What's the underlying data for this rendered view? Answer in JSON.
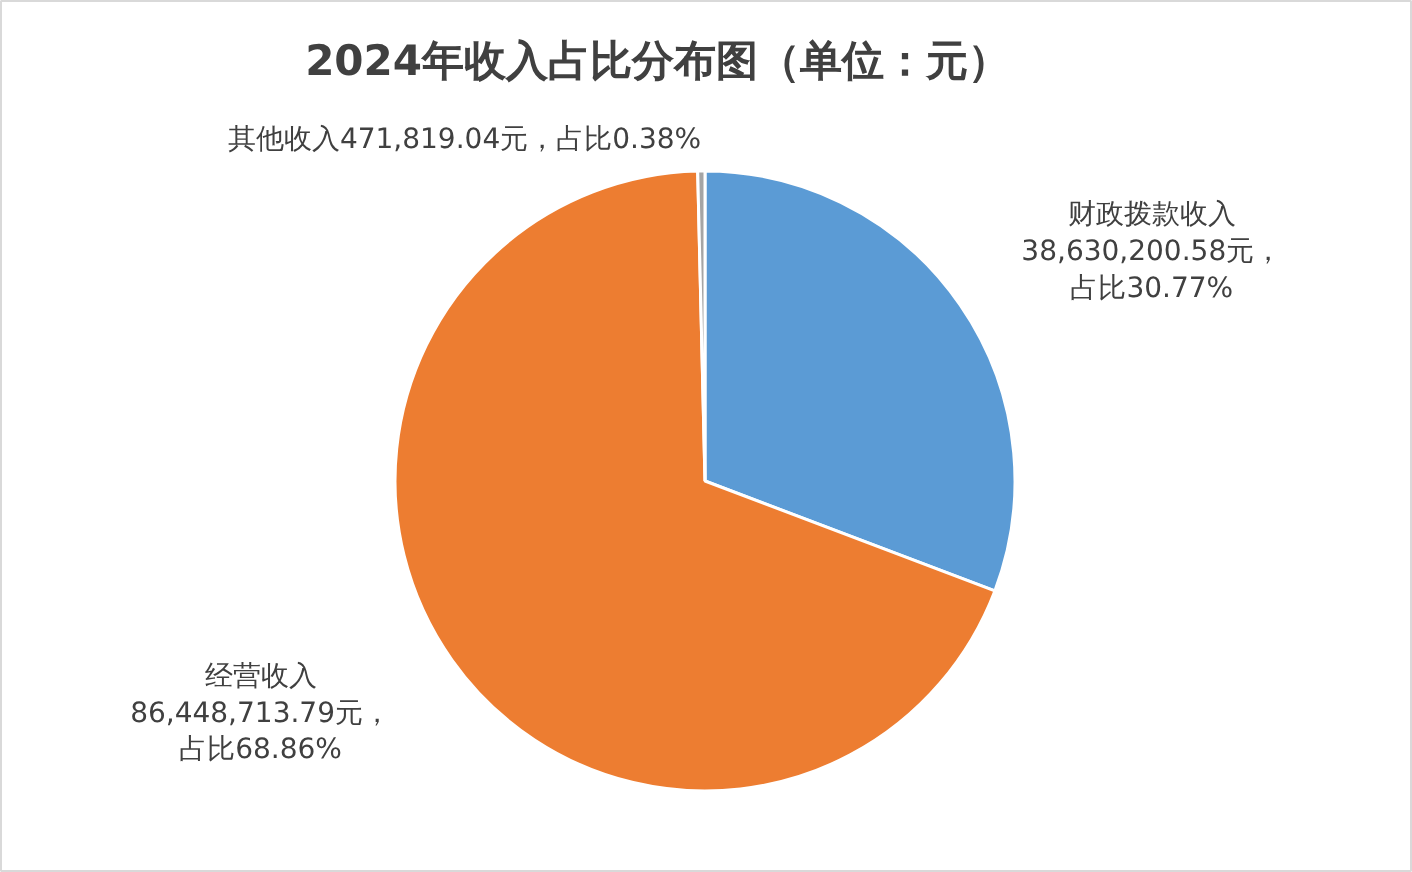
{
  "chart_data": {
    "type": "pie",
    "title": "2024年收入占比分布图（单位：元）",
    "categories": [
      "财政拨款收入",
      "经营收入",
      "其他收入"
    ],
    "values": [
      38630200.58,
      86448713.79,
      471819.04
    ],
    "colors": [
      "#5b9bd5",
      "#ed7d31",
      "#a5a5a5"
    ],
    "value_labels": [
      "38,630,200.58元，占比30.77%",
      "86,448,713.79元，占比68.86%",
      "471,819.04元，占比0.38%"
    ]
  }
}
